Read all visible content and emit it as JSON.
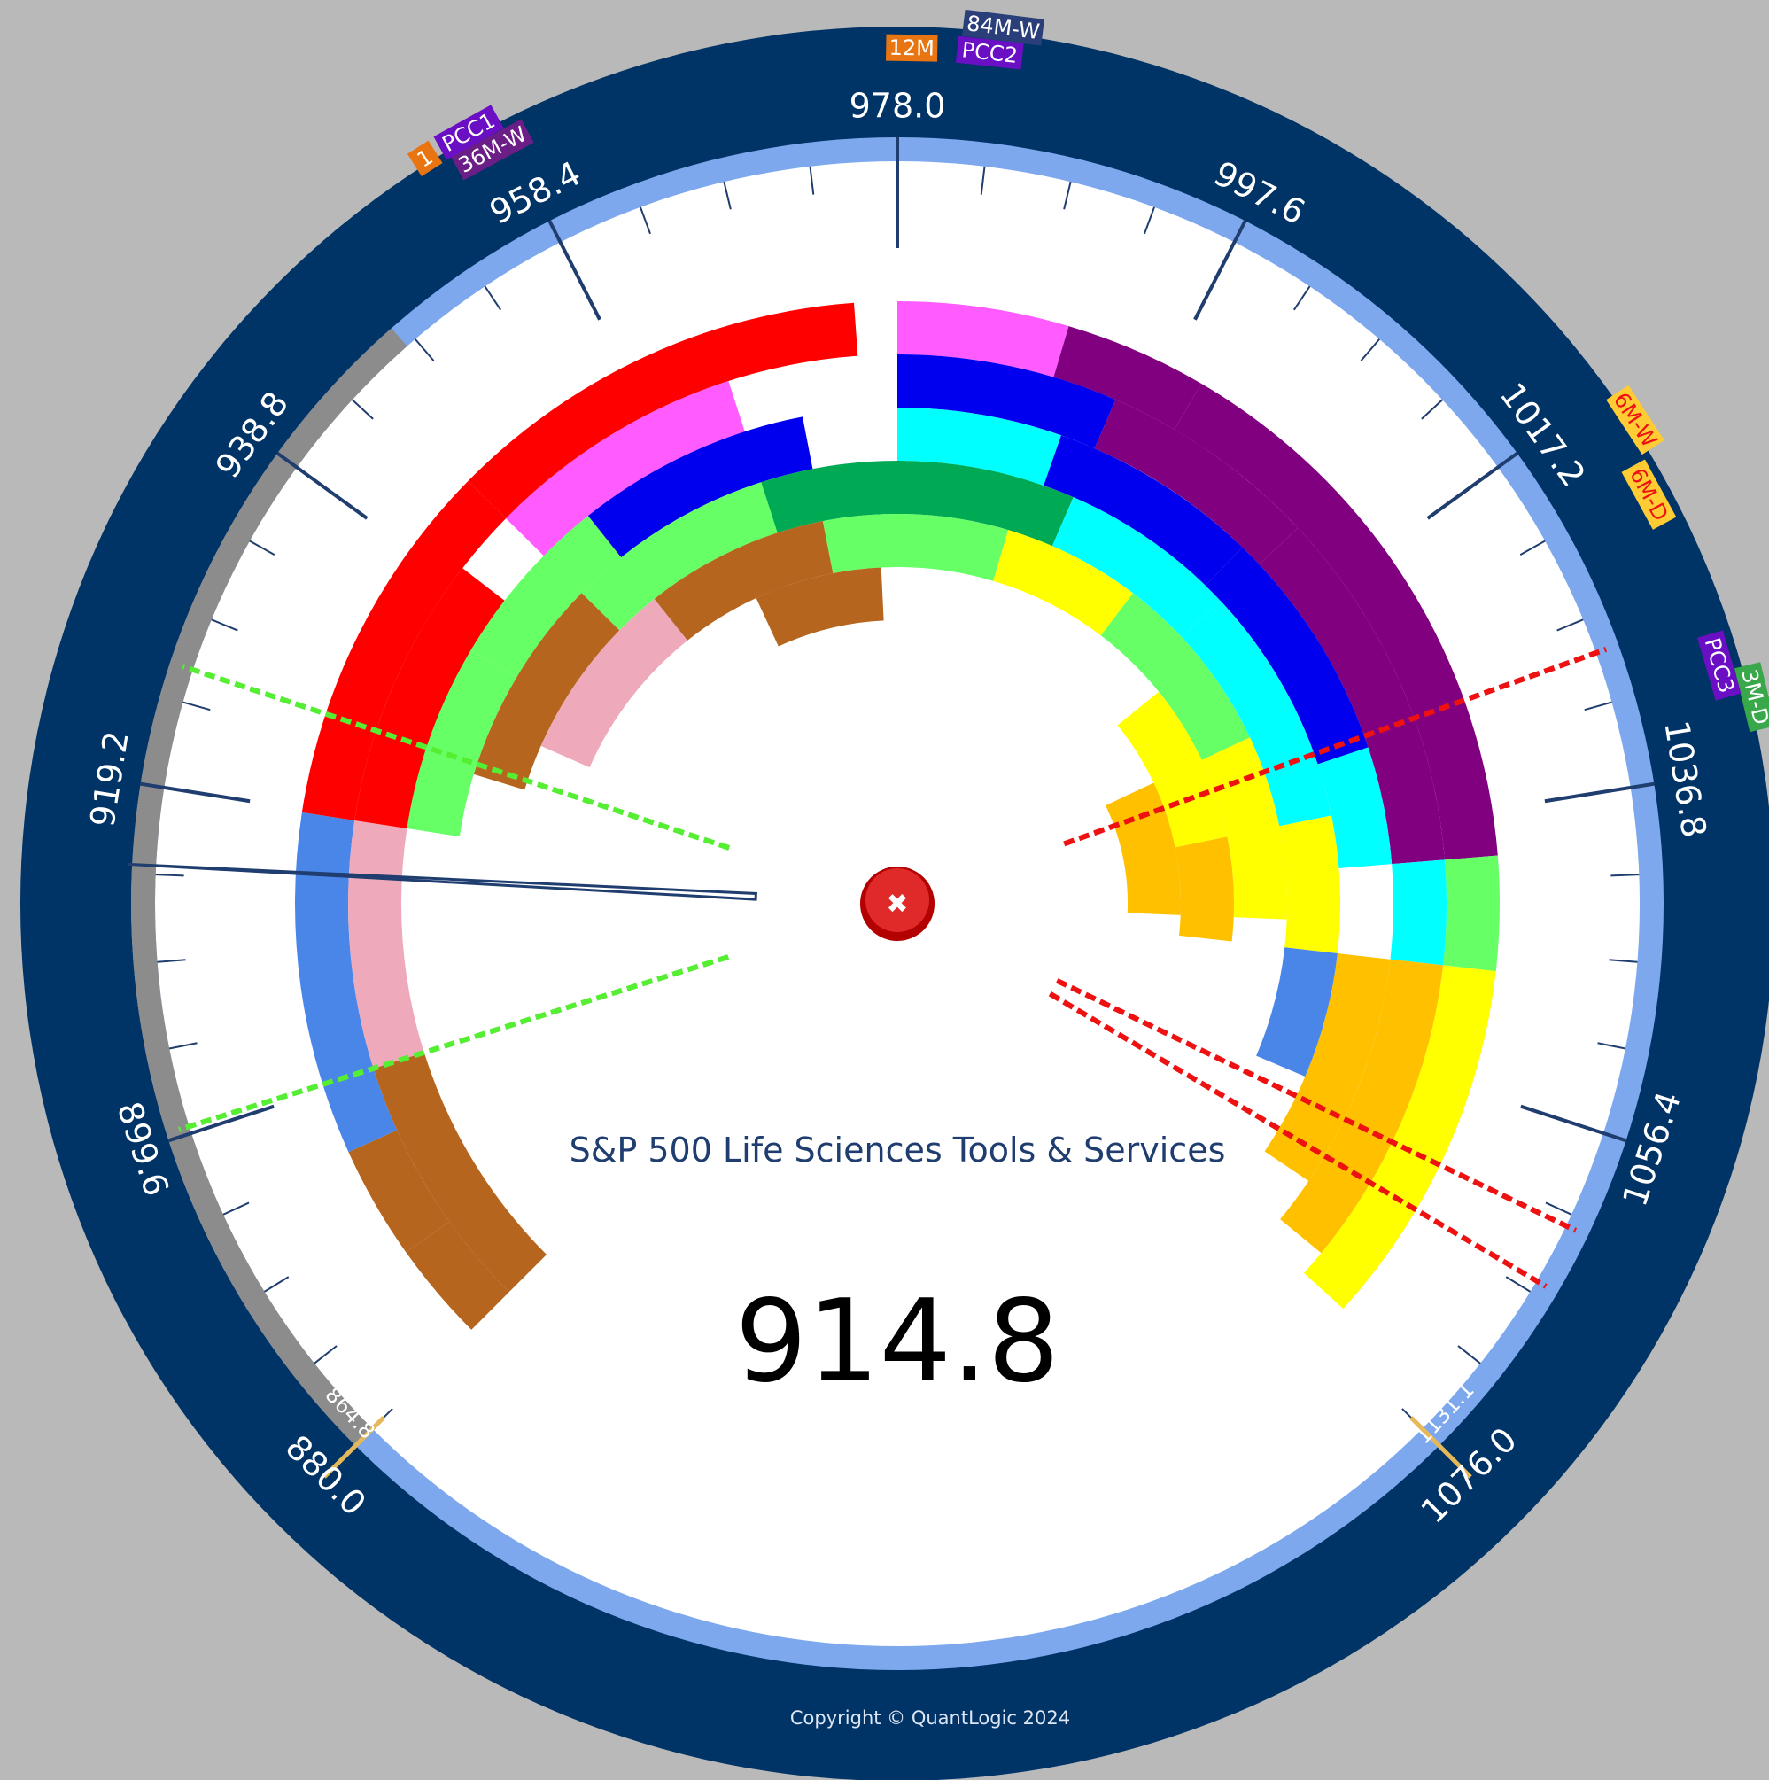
{
  "chart_data": {
    "type": "radial-bar",
    "title": "S&P 500 Life Sciences Tools & Services",
    "current_value": "914.8",
    "range": [
      880.0,
      1076.0
    ],
    "range_labels": [
      "880.0",
      "1076.0"
    ],
    "axis_ticks": [
      "899.6",
      "919.2",
      "938.8",
      "958.4",
      "978.0",
      "997.6",
      "1017.2",
      "1036.8",
      "1056.4"
    ],
    "ring_value_labels": [
      "864.8",
      "1131.1"
    ],
    "rim_tags": [
      {
        "text": "1",
        "color": "#e87511",
        "pos": 954.5
      },
      {
        "text": "36M-W",
        "color": "#6b1f86",
        "pos": 957.5
      },
      {
        "text": "PCC1",
        "color": "#6a0fc4",
        "pos": 956.9
      },
      {
        "text": "12M",
        "color": "#e87511",
        "pos": 978.7
      },
      {
        "text": "84M-W",
        "color": "#2a3f7a",
        "pos": 983.0
      },
      {
        "text": "PCC2",
        "color": "#6a0fc4",
        "pos": 982.5
      },
      {
        "text": "6M-W",
        "color": "#ffcc33",
        "pos": 1019.2
      },
      {
        "text": "6M-D",
        "color": "#ffcc33",
        "pos": 1022.6
      },
      {
        "text": "3M-D",
        "color": "#39a84a",
        "pos": 1033.5
      },
      {
        "text": "PCC3",
        "color": "#6a0fc4",
        "pos": 1031.6
      }
    ],
    "reference_lines": [
      {
        "name": "green-upper",
        "value": 926.0,
        "color": "#55ee33"
      },
      {
        "name": "green-lower",
        "value": 900.0,
        "color": "#55ee33"
      },
      {
        "name": "red-upper",
        "value": 1029.0,
        "color": "#ee1111"
      },
      {
        "name": "red-lower-1",
        "value": 1062.0,
        "color": "#ee1111"
      },
      {
        "name": "red-lower-2",
        "value": 1065.5,
        "color": "#ee1111"
      }
    ],
    "series_colors": [
      "#ff0000",
      "#ff5bff",
      "#0000ee",
      "#00ffff",
      "#00aa55",
      "#66ff66",
      "#ffff00",
      "#ffc000",
      "#800080",
      "#b5651d",
      "#eeaabb",
      "#4a86e8"
    ],
    "grid": false,
    "copyright": "Copyright © QuantLogic 2024",
    "background_color": "#b9b9b9",
    "rim_color": "#003366"
  },
  "controls": {
    "close_glyph": "✖"
  }
}
